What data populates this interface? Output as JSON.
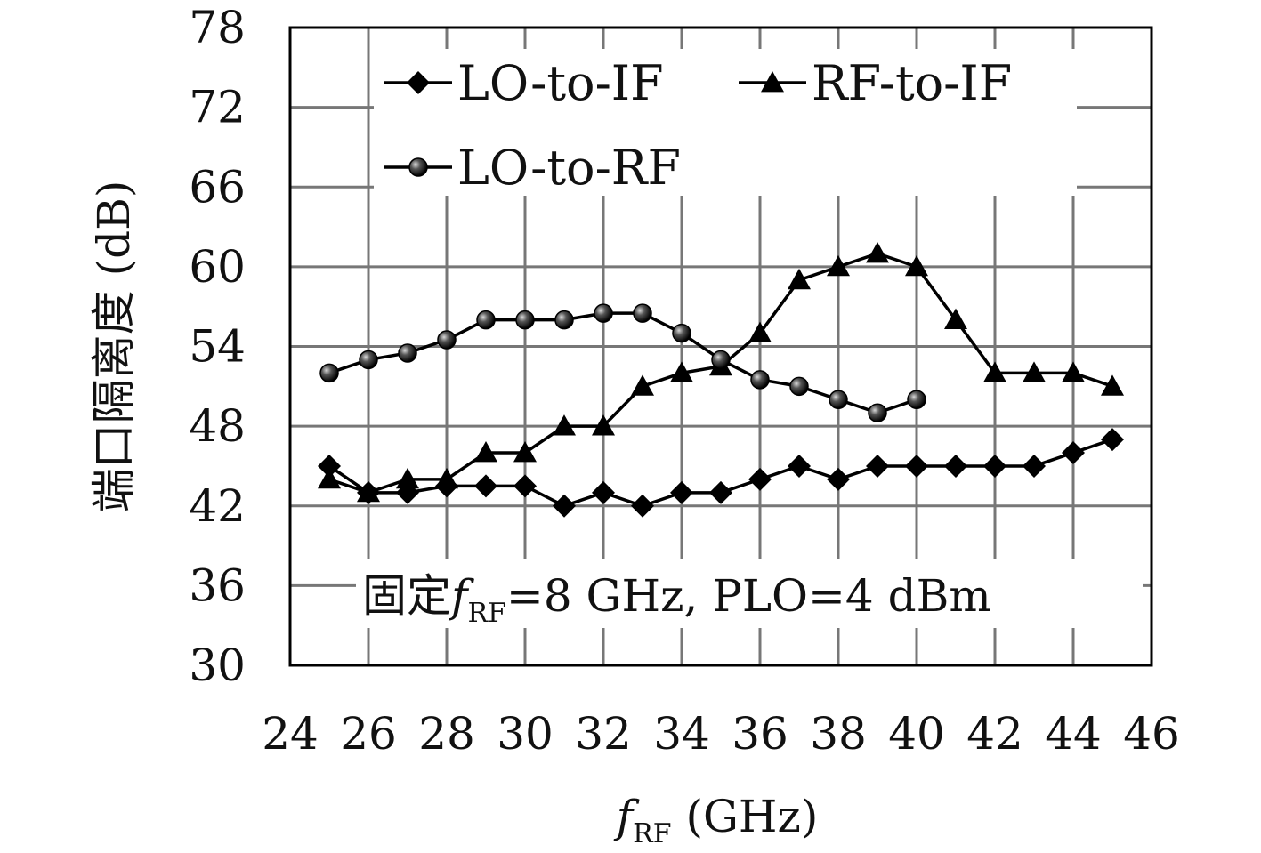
{
  "chart_data": {
    "type": "line",
    "title": "",
    "xlabel": {
      "base": "f",
      "sub": "RF",
      "rest": " (GHz)"
    },
    "ylabel": "端口隔离度 (dB)",
    "xlim": [
      24,
      46
    ],
    "ylim": [
      30,
      78
    ],
    "x_ticks": [
      24,
      26,
      28,
      30,
      32,
      34,
      36,
      38,
      40,
      42,
      44,
      46
    ],
    "y_ticks": [
      30,
      36,
      42,
      48,
      54,
      60,
      66,
      72,
      78
    ],
    "grid": true,
    "legend_position": "top",
    "annotation": {
      "pre": "固定",
      "f": "f",
      "sub": "RF",
      "post": "=8 GHz, PLO=4 dBm"
    },
    "series": [
      {
        "name": "LO-to-IF",
        "marker": "diamond",
        "x": [
          25,
          26,
          27,
          28,
          29,
          30,
          31,
          32,
          33,
          34,
          35,
          36,
          37,
          38,
          39,
          40,
          41,
          42,
          43,
          44,
          45
        ],
        "y": [
          45,
          43,
          43,
          43.5,
          43.5,
          43.5,
          42,
          43,
          42,
          43,
          43,
          44,
          45,
          44,
          45,
          45,
          45,
          45,
          45,
          46,
          47
        ]
      },
      {
        "name": "RF-to-IF",
        "marker": "triangle",
        "x": [
          25,
          26,
          27,
          28,
          29,
          30,
          31,
          32,
          33,
          34,
          35,
          36,
          37,
          38,
          39,
          40,
          41,
          42,
          43,
          44,
          45
        ],
        "y": [
          44,
          43,
          44,
          44,
          46,
          46,
          48,
          48,
          51,
          52,
          52.5,
          55,
          59,
          60,
          61,
          60,
          56,
          52,
          52,
          52,
          51
        ]
      },
      {
        "name": "LO-to-RF",
        "marker": "circle",
        "x": [
          25,
          26,
          27,
          28,
          29,
          30,
          31,
          32,
          33,
          34,
          35,
          36,
          37,
          38,
          39,
          40
        ],
        "y": [
          52,
          53,
          53.5,
          54.5,
          56,
          56,
          56,
          56.5,
          56.5,
          55,
          53,
          51.5,
          51,
          50,
          49,
          50
        ]
      }
    ]
  }
}
